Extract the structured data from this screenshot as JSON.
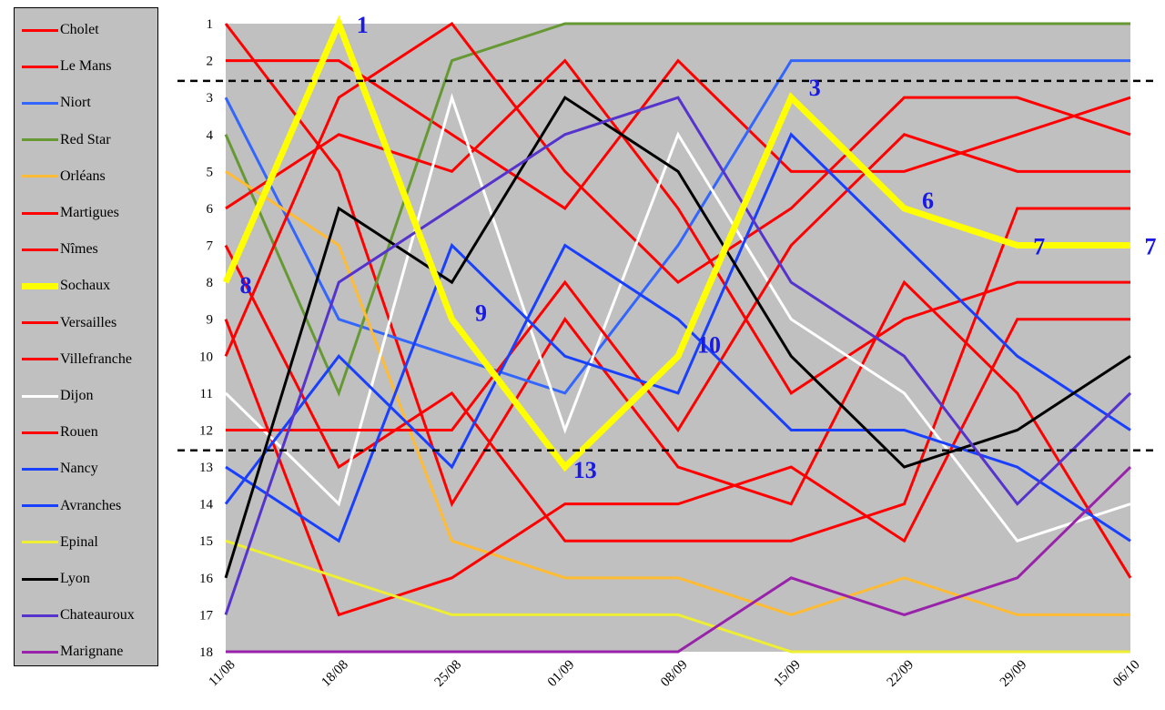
{
  "chart_data": {
    "type": "line",
    "x": [
      "11/08",
      "18/08",
      "25/08",
      "01/09",
      "08/09",
      "15/09",
      "22/09",
      "29/09",
      "06/10"
    ],
    "ylim": [
      1,
      18
    ],
    "y_inverted": true,
    "y_ticks": [
      "1",
      "2",
      "3",
      "4",
      "5",
      "6",
      "7",
      "8",
      "9",
      "10",
      "11",
      "12",
      "13",
      "14",
      "15",
      "16",
      "17",
      "18"
    ],
    "grid": false,
    "legend_position": "left",
    "reference_lines": [
      2.55,
      12.55
    ],
    "series": [
      {
        "name": "Cholet",
        "color": "#ff0000",
        "values": [
          1,
          5,
          14,
          9,
          13,
          14,
          8,
          11,
          16
        ]
      },
      {
        "name": "Le Mans",
        "color": "#ff0000",
        "values": [
          2,
          2,
          4,
          6,
          2,
          5,
          5,
          4,
          3
        ]
      },
      {
        "name": "Niort",
        "color": "#3366ff",
        "values": [
          3,
          9,
          10,
          11,
          7,
          2,
          2,
          2,
          2
        ]
      },
      {
        "name": "Red Star",
        "color": "#669933",
        "values": [
          4,
          11,
          2,
          1,
          1,
          1,
          1,
          1,
          1
        ]
      },
      {
        "name": "Orléans",
        "color": "#ffbb33",
        "values": [
          5,
          7,
          15,
          16,
          16,
          17,
          16,
          17,
          17
        ]
      },
      {
        "name": "Martigues",
        "color": "#ff0000",
        "values": [
          6,
          4,
          5,
          2,
          6,
          11,
          9,
          8,
          8
        ]
      },
      {
        "name": "Nîmes",
        "color": "#ff0000",
        "values": [
          7,
          13,
          11,
          15,
          15,
          15,
          14,
          6,
          6
        ]
      },
      {
        "name": "Sochaux",
        "color": "#ffff00",
        "values": [
          8,
          1,
          9,
          13,
          10,
          3,
          6,
          7,
          7
        ]
      },
      {
        "name": "Versailles",
        "color": "#ff0000",
        "values": [
          9,
          17,
          16,
          14,
          14,
          13,
          15,
          9,
          9
        ]
      },
      {
        "name": "Villefranche",
        "color": "#ff0000",
        "values": [
          10,
          3,
          1,
          5,
          8,
          6,
          3,
          3,
          4
        ]
      },
      {
        "name": "Dijon",
        "color": "#ffffff",
        "values": [
          11,
          14,
          3,
          12,
          4,
          9,
          11,
          15,
          14
        ]
      },
      {
        "name": "Rouen",
        "color": "#ff0000",
        "values": [
          12,
          12,
          12,
          8,
          12,
          7,
          4,
          5,
          5
        ]
      },
      {
        "name": "Nancy",
        "color": "#1a40ff",
        "values": [
          13,
          15,
          7,
          10,
          11,
          4,
          7,
          10,
          12
        ]
      },
      {
        "name": "Avranches",
        "color": "#1a40ff",
        "values": [
          14,
          10,
          13,
          7,
          9,
          12,
          12,
          13,
          15
        ]
      },
      {
        "name": "Epinal",
        "color": "#eeee33",
        "values": [
          15,
          16,
          17,
          17,
          17,
          18,
          18,
          18,
          18
        ]
      },
      {
        "name": "Lyon",
        "color": "#000000",
        "values": [
          16,
          6,
          8,
          3,
          5,
          10,
          13,
          12,
          10
        ]
      },
      {
        "name": "Chateauroux",
        "color": "#5533cc",
        "values": [
          17,
          8,
          6,
          4,
          3,
          8,
          10,
          14,
          11
        ]
      },
      {
        "name": "Marignane",
        "color": "#9922aa",
        "values": [
          18,
          18,
          18,
          18,
          18,
          16,
          17,
          16,
          13
        ]
      }
    ],
    "highlight_series": "Sochaux",
    "annotations": [
      {
        "series": "Sochaux",
        "x": "11/08",
        "text": "8"
      },
      {
        "series": "Sochaux",
        "x": "18/08",
        "text": "1"
      },
      {
        "series": "Sochaux",
        "x": "25/08",
        "text": "9"
      },
      {
        "series": "Sochaux",
        "x": "01/09",
        "text": "13"
      },
      {
        "series": "Sochaux",
        "x": "08/09",
        "text": "10"
      },
      {
        "series": "Sochaux",
        "x": "15/09",
        "text": "3"
      },
      {
        "series": "Sochaux",
        "x": "22/09",
        "text": "6"
      },
      {
        "series": "Sochaux",
        "x": "29/09",
        "text": "7"
      },
      {
        "series": "Sochaux",
        "x": "06/10",
        "text": "7"
      }
    ]
  }
}
